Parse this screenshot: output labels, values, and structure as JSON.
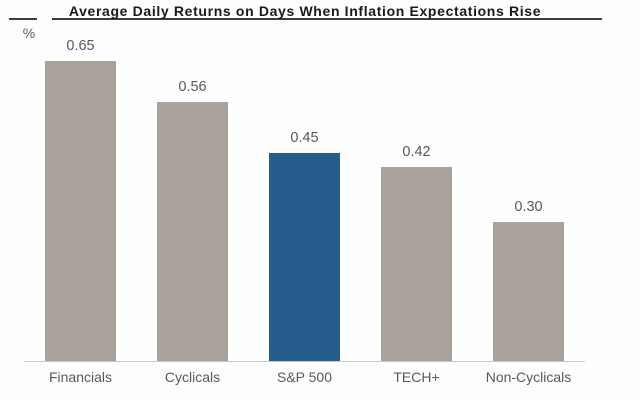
{
  "chart_data": {
    "type": "bar",
    "title": "Average Daily Returns on Days When Inflation Expectations Rise",
    "unit_label": "%",
    "categories": [
      "Financials",
      "Cyclicals",
      "S&P 500",
      "TECH+",
      "Non-Cyclicals"
    ],
    "values": [
      0.65,
      0.56,
      0.45,
      0.42,
      0.3
    ],
    "value_labels": [
      "0.65",
      "0.56",
      "0.45",
      "0.42",
      "0.30"
    ],
    "highlighted_category": "S&P 500",
    "xlabel": "",
    "ylabel": "%",
    "ylim": [
      0,
      0.74
    ],
    "grid": false,
    "legend": false,
    "colors": {
      "bar": "#a9a39c",
      "highlight_bar": "#255d8c",
      "title_text": "#1a1a1a",
      "label_text": "#595959",
      "title_rule": "#3d3d3d",
      "axis_line": "#c7c7c5",
      "background": "#fefefe"
    }
  }
}
